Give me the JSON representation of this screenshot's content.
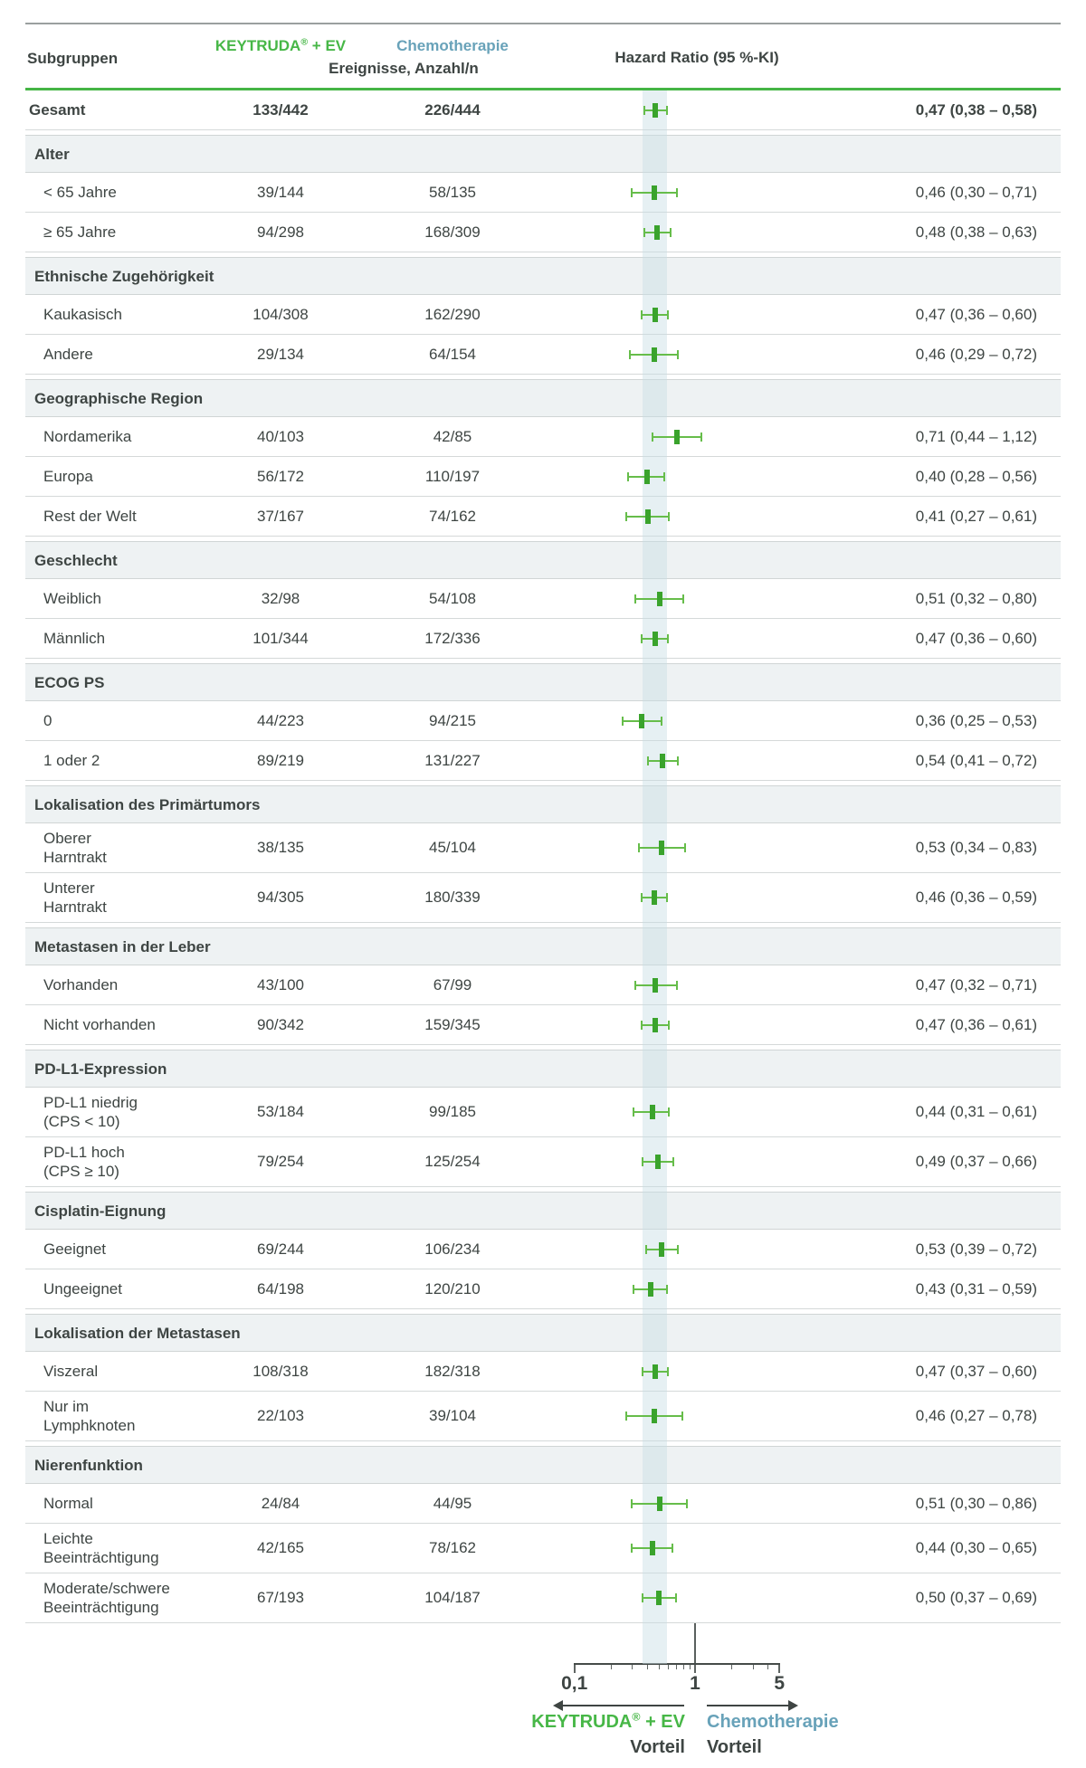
{
  "colors": {
    "keytruda_green": "#47b747",
    "chemo_blue": "#68a2b9",
    "text_dark": "#3e4543",
    "section_header_bg": "#eef2f3",
    "row_separator": "#d5d9d9",
    "header_green_rule": "#45b545",
    "ci_band": "rgba(199,221,229,0.45)",
    "marker_line_green": "#66bd4a",
    "marker_box_green": "#3aa32c",
    "reference_line_gray": "#909695",
    "axis_dark": "#454b49"
  },
  "header": {
    "subgroups_label": "Subgruppen",
    "keytruda_name": "KEYTRUDA",
    "registered_mark": "®",
    "keytruda_suffix": " + EV",
    "chemo_label": "Chemotherapie",
    "events_label": "Ereignisse, Anzahl/n",
    "hr_label": "Hazard Ratio (95 %-KI)"
  },
  "chart_data": {
    "type": "scatter",
    "subtype": "forest_plot_hazard_ratios",
    "x_scale": "log10",
    "x_axis_range": [
      0.1,
      5
    ],
    "x_major_ticks": [
      0.1,
      1,
      5
    ],
    "x_major_tick_labels": [
      "0,1",
      "1",
      "5"
    ],
    "x_minor_ticks": [
      0.2,
      0.3,
      0.4,
      0.5,
      0.6,
      0.7,
      0.8,
      0.9,
      2,
      3,
      4
    ],
    "reference_line_x": 1,
    "highlight_band_ci": [
      0.38,
      0.58
    ],
    "overall": {
      "label_lines": [
        "Gesamt"
      ],
      "keytruda_events": "133/442",
      "chemo_events": "226/444",
      "hr": 0.47,
      "ci": [
        0.38,
        0.58
      ],
      "hr_text": "0,47 (0,38 – 0,58)"
    },
    "sections": [
      {
        "title": "Alter",
        "rows": [
          {
            "label_lines": [
              "< 65 Jahre"
            ],
            "keytruda_events": "39/144",
            "chemo_events": "58/135",
            "hr": 0.46,
            "ci": [
              0.3,
              0.71
            ],
            "hr_text": "0,46 (0,30 – 0,71)"
          },
          {
            "label_lines": [
              "≥ 65 Jahre"
            ],
            "keytruda_events": "94/298",
            "chemo_events": "168/309",
            "hr": 0.48,
            "ci": [
              0.38,
              0.63
            ],
            "hr_text": "0,48 (0,38 – 0,63)"
          }
        ]
      },
      {
        "title": "Ethnische Zugehörigkeit",
        "rows": [
          {
            "label_lines": [
              "Kaukasisch"
            ],
            "keytruda_events": "104/308",
            "chemo_events": "162/290",
            "hr": 0.47,
            "ci": [
              0.36,
              0.6
            ],
            "hr_text": "0,47 (0,36 – 0,60)"
          },
          {
            "label_lines": [
              "Andere"
            ],
            "keytruda_events": "29/134",
            "chemo_events": "64/154",
            "hr": 0.46,
            "ci": [
              0.29,
              0.72
            ],
            "hr_text": "0,46 (0,29 – 0,72)"
          }
        ]
      },
      {
        "title": "Geographische Region",
        "rows": [
          {
            "label_lines": [
              "Nordamerika"
            ],
            "keytruda_events": "40/103",
            "chemo_events": "42/85",
            "hr": 0.71,
            "ci": [
              0.44,
              1.12
            ],
            "hr_text": "0,71 (0,44 – 1,12)"
          },
          {
            "label_lines": [
              "Europa"
            ],
            "keytruda_events": "56/172",
            "chemo_events": "110/197",
            "hr": 0.4,
            "ci": [
              0.28,
              0.56
            ],
            "hr_text": "0,40 (0,28 – 0,56)"
          },
          {
            "label_lines": [
              "Rest der Welt"
            ],
            "keytruda_events": "37/167",
            "chemo_events": "74/162",
            "hr": 0.41,
            "ci": [
              0.27,
              0.61
            ],
            "hr_text": "0,41 (0,27 – 0,61)"
          }
        ]
      },
      {
        "title": "Geschlecht",
        "rows": [
          {
            "label_lines": [
              "Weiblich"
            ],
            "keytruda_events": "32/98",
            "chemo_events": "54/108",
            "hr": 0.51,
            "ci": [
              0.32,
              0.8
            ],
            "hr_text": "0,51 (0,32 – 0,80)"
          },
          {
            "label_lines": [
              "Männlich"
            ],
            "keytruda_events": "101/344",
            "chemo_events": "172/336",
            "hr": 0.47,
            "ci": [
              0.36,
              0.6
            ],
            "hr_text": "0,47 (0,36 – 0,60)"
          }
        ]
      },
      {
        "title": "ECOG PS",
        "rows": [
          {
            "label_lines": [
              "0"
            ],
            "keytruda_events": "44/223",
            "chemo_events": "94/215",
            "hr": 0.36,
            "ci": [
              0.25,
              0.53
            ],
            "hr_text": "0,36 (0,25 – 0,53)"
          },
          {
            "label_lines": [
              "1 oder 2"
            ],
            "keytruda_events": "89/219",
            "chemo_events": "131/227",
            "hr": 0.54,
            "ci": [
              0.41,
              0.72
            ],
            "hr_text": "0,54 (0,41 – 0,72)"
          }
        ]
      },
      {
        "title": "Lokalisation des Primärtumors",
        "rows": [
          {
            "label_lines": [
              "Oberer",
              "Harntrakt"
            ],
            "keytruda_events": "38/135",
            "chemo_events": "45/104",
            "hr": 0.53,
            "ci": [
              0.34,
              0.83
            ],
            "hr_text": "0,53 (0,34 – 0,83)"
          },
          {
            "label_lines": [
              "Unterer",
              "Harntrakt"
            ],
            "keytruda_events": "94/305",
            "chemo_events": "180/339",
            "hr": 0.46,
            "ci": [
              0.36,
              0.59
            ],
            "hr_text": "0,46 (0,36 – 0,59)"
          }
        ]
      },
      {
        "title": "Metastasen in der Leber",
        "rows": [
          {
            "label_lines": [
              "Vorhanden"
            ],
            "keytruda_events": "43/100",
            "chemo_events": "67/99",
            "hr": 0.47,
            "ci": [
              0.32,
              0.71
            ],
            "hr_text": "0,47 (0,32 – 0,71)"
          },
          {
            "label_lines": [
              "Nicht vorhanden"
            ],
            "keytruda_events": "90/342",
            "chemo_events": "159/345",
            "hr": 0.47,
            "ci": [
              0.36,
              0.61
            ],
            "hr_text": "0,47 (0,36 – 0,61)"
          }
        ]
      },
      {
        "title": "PD-L1-Expression",
        "rows": [
          {
            "label_lines": [
              "PD-L1 niedrig",
              "(CPS < 10)"
            ],
            "keytruda_events": "53/184",
            "chemo_events": "99/185",
            "hr": 0.44,
            "ci": [
              0.31,
              0.61
            ],
            "hr_text": "0,44 (0,31 – 0,61)"
          },
          {
            "label_lines": [
              "PD-L1 hoch",
              "(CPS ≥ 10)"
            ],
            "keytruda_events": "79/254",
            "chemo_events": "125/254",
            "hr": 0.49,
            "ci": [
              0.37,
              0.66
            ],
            "hr_text": "0,49 (0,37 – 0,66)"
          }
        ]
      },
      {
        "title": "Cisplatin-Eignung",
        "rows": [
          {
            "label_lines": [
              "Geeignet"
            ],
            "keytruda_events": "69/244",
            "chemo_events": "106/234",
            "hr": 0.53,
            "ci": [
              0.39,
              0.72
            ],
            "hr_text": "0,53 (0,39 – 0,72)"
          },
          {
            "label_lines": [
              "Ungeeignet"
            ],
            "keytruda_events": "64/198",
            "chemo_events": "120/210",
            "hr": 0.43,
            "ci": [
              0.31,
              0.59
            ],
            "hr_text": "0,43 (0,31 – 0,59)"
          }
        ]
      },
      {
        "title": "Lokalisation der Metastasen",
        "rows": [
          {
            "label_lines": [
              "Viszeral"
            ],
            "keytruda_events": "108/318",
            "chemo_events": "182/318",
            "hr": 0.47,
            "ci": [
              0.37,
              0.6
            ],
            "hr_text": "0,47 (0,37 – 0,60)"
          },
          {
            "label_lines": [
              "Nur im",
              "Lymphknoten"
            ],
            "keytruda_events": "22/103",
            "chemo_events": "39/104",
            "hr": 0.46,
            "ci": [
              0.27,
              0.78
            ],
            "hr_text": "0,46 (0,27 – 0,78)"
          }
        ]
      },
      {
        "title": "Nierenfunktion",
        "rows": [
          {
            "label_lines": [
              "Normal"
            ],
            "keytruda_events": "24/84",
            "chemo_events": "44/95",
            "hr": 0.51,
            "ci": [
              0.3,
              0.86
            ],
            "hr_text": "0,51 (0,30 – 0,86)"
          },
          {
            "label_lines": [
              "Leichte",
              "Beeinträchtigung"
            ],
            "keytruda_events": "42/165",
            "chemo_events": "78/162",
            "hr": 0.44,
            "ci": [
              0.3,
              0.65
            ],
            "hr_text": "0,44 (0,30 – 0,65)"
          },
          {
            "label_lines": [
              "Moderate/schwere",
              "Beeinträchtigung"
            ],
            "keytruda_events": "67/193",
            "chemo_events": "104/187",
            "hr": 0.5,
            "ci": [
              0.37,
              0.69
            ],
            "hr_text": "0,50 (0,37 – 0,69)"
          }
        ]
      }
    ]
  },
  "axis_footer": {
    "tick_labels": [
      "0,1",
      "1",
      "5"
    ],
    "left_name": "KEYTRUDA",
    "left_registered": "®",
    "left_suffix": " + EV",
    "left_benefit": "Vorteil",
    "right_name": "Chemotherapie",
    "right_benefit": "Vorteil"
  }
}
